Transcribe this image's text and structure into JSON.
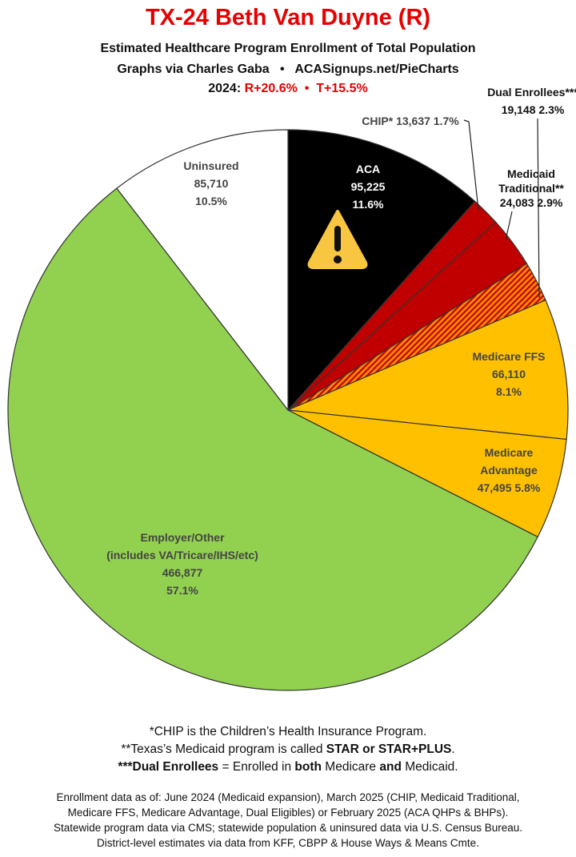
{
  "header": {
    "title": "TX-24 Beth Van Duyne (R)",
    "subtitle": "Estimated Healthcare Program Enrollment of Total Population",
    "credit": "Graphs via Charles Gaba   •   ACASignups.net/PieCharts",
    "year_label": "2024:",
    "margins": "R+20.6%  •  T+15.5%"
  },
  "chart_data": {
    "type": "pie",
    "start": "12 o'clock, clockwise",
    "slices": [
      {
        "name": "ACA",
        "value": 95225,
        "percent": 11.6,
        "color": "#000000",
        "label_lines": [
          "ACA",
          "95,225",
          "11.6%"
        ],
        "label_color": "#ffffff"
      },
      {
        "name": "CHIP*",
        "value": 13637,
        "percent": 1.7,
        "color": "#c00000",
        "label_lines": [
          "CHIP* 13,637 1.7%"
        ],
        "label_color": "#444444"
      },
      {
        "name": "Medicaid Traditional**",
        "value": 24083,
        "percent": 2.9,
        "color": "#c00000",
        "label_lines": [
          "Medicaid",
          "Traditional**",
          "24,083 2.9%"
        ],
        "label_color": "#111111"
      },
      {
        "name": "Dual Enrollees***",
        "value": 19148,
        "percent": 2.3,
        "color": "#ff8c00",
        "pattern": "hatched red/orange",
        "label_lines": [
          "Dual Enrollees***",
          "19,148 2.3%"
        ],
        "label_color": "#111111"
      },
      {
        "name": "Medicare FFS",
        "value": 66110,
        "percent": 8.1,
        "color": "#ffc000",
        "label_lines": [
          "Medicare FFS",
          "66,110",
          "8.1%"
        ],
        "label_color": "#444444"
      },
      {
        "name": "Medicare Advantage",
        "value": 47495,
        "percent": 5.8,
        "color": "#ffc000",
        "label_lines": [
          "Medicare",
          "Advantage",
          "47,495 5.8%"
        ],
        "label_color": "#444444"
      },
      {
        "name": "Employer/Other",
        "value": 466877,
        "percent": 57.1,
        "color": "#92d050",
        "label_lines": [
          "Employer/Other",
          "(includes VA/Tricare/IHS/etc)",
          "466,877",
          "57.1%"
        ],
        "label_color": "#444444"
      },
      {
        "name": "Uninsured",
        "value": 85710,
        "percent": 10.5,
        "color": "#ffffff",
        "label_lines": [
          "Uninsured",
          "85,710",
          "10.5%"
        ],
        "label_color": "#444444"
      }
    ],
    "icons": [
      "warning-icon"
    ]
  },
  "notes": [
    [
      {
        "t": "*CHIP is the Children’s Health Insurance Program.",
        "b": false
      }
    ],
    [
      {
        "t": "**Texas’s Medicaid program is called ",
        "b": false
      },
      {
        "t": "STAR or STAR+PLUS",
        "b": true
      },
      {
        "t": ".",
        "b": false
      }
    ],
    [
      {
        "t": "***Dual Enrollees",
        "b": true
      },
      {
        "t": " = Enrolled in ",
        "b": false
      },
      {
        "t": "both",
        "b": true
      },
      {
        "t": " Medicare ",
        "b": false
      },
      {
        "t": "and",
        "b": true
      },
      {
        "t": " Medicaid.",
        "b": false
      }
    ]
  ],
  "footer": [
    "Enrollment data as of: June 2024 (Medicaid expansion), March 2025 (CHIP, Medicaid Traditional,",
    "Medicare FFS, Medicare Advantage, Dual Eligibles) or February 2025 (ACA QHPs & BHPs).",
    "Statewide program data via CMS; statewide population & uninsured data via U.S. Census Bureau.",
    "District-level estimates via data from KFF, CBPP & House Ways & Means Cmte."
  ]
}
